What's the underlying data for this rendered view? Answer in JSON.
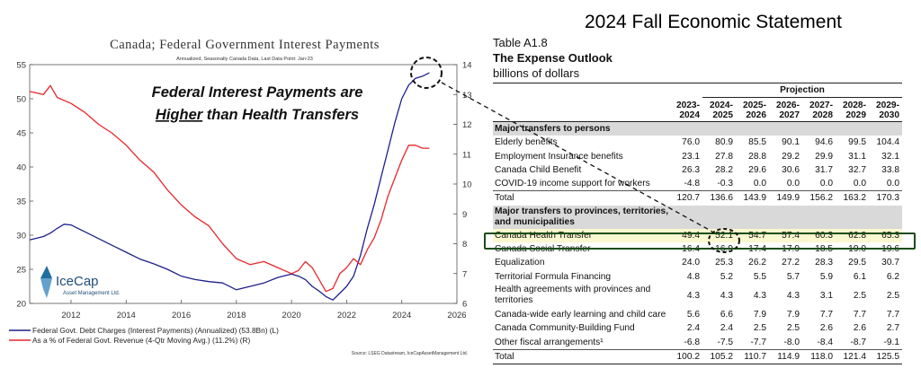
{
  "chart_data": {
    "type": "line",
    "title": "Canada; Federal Government Interest Payments",
    "subtitle": "Annualized, Seasonally Canada Data, Last Data Point: Jan-23",
    "annotation_line1": "Federal Interest Payments are",
    "annotation_higher": "Higher",
    "annotation_rest": " than Health Transfers",
    "x_ticks": [
      "2012",
      "2014",
      "2016",
      "2018",
      "2020",
      "2022",
      "2024",
      "2026"
    ],
    "xlim": [
      2010.5,
      2026
    ],
    "y_left_ticks": [
      "20",
      "25",
      "30",
      "35",
      "40",
      "45",
      "50",
      "55"
    ],
    "ylim_left": [
      20,
      55
    ],
    "y_right_ticks": [
      "6",
      "7",
      "8",
      "9",
      "10",
      "11",
      "12",
      "13",
      "14"
    ],
    "ylim_right": [
      6,
      14
    ],
    "legend_placement": "bottom-left",
    "series": [
      {
        "name": "Federal Govt. Debt Charges (Interest Payments) (Annualized) (53.8Bn) (L)",
        "axis": "left",
        "color": "#1f1f8c",
        "x": [
          2010.5,
          2011.0,
          2011.25,
          2011.5,
          2011.75,
          2012.0,
          2012.25,
          2012.5,
          2013.0,
          2013.5,
          2014.0,
          2014.5,
          2015.0,
          2015.5,
          2016.0,
          2016.5,
          2017.0,
          2017.5,
          2018.0,
          2018.5,
          2019.0,
          2019.5,
          2020.0,
          2020.25,
          2020.5,
          2020.75,
          2021.0,
          2021.25,
          2021.5,
          2021.75,
          2022.0,
          2022.25,
          2022.5,
          2022.75,
          2023.0,
          2023.25,
          2023.5,
          2023.75,
          2024.0,
          2024.25,
          2024.5,
          2024.75,
          2025.0
        ],
        "values": [
          29.3,
          29.8,
          30.3,
          31.0,
          31.6,
          31.5,
          31.0,
          30.5,
          29.5,
          28.5,
          27.5,
          26.5,
          25.8,
          25.0,
          24.0,
          23.5,
          23.2,
          23.0,
          22.0,
          22.5,
          23.0,
          23.8,
          24.3,
          24.0,
          23.5,
          22.5,
          21.8,
          21.0,
          20.5,
          21.5,
          22.5,
          24.0,
          27.0,
          31.0,
          34.5,
          38.5,
          42.5,
          46.5,
          50.0,
          52.0,
          53.0,
          53.3,
          53.8
        ]
      },
      {
        "name": "As a % of Federal Govt. Revenue (4-Qtr Moving Avg.) (11.2%) (R)",
        "axis": "right",
        "color": "#e8262b",
        "x": [
          2010.5,
          2011.0,
          2011.25,
          2011.5,
          2012.0,
          2012.5,
          2013.0,
          2013.5,
          2014.0,
          2014.5,
          2015.0,
          2015.5,
          2016.0,
          2016.5,
          2017.0,
          2017.5,
          2018.0,
          2018.5,
          2019.0,
          2019.5,
          2020.0,
          2020.25,
          2020.5,
          2020.75,
          2021.0,
          2021.25,
          2021.5,
          2021.75,
          2022.0,
          2022.25,
          2022.5,
          2022.75,
          2023.0,
          2023.25,
          2023.5,
          2023.75,
          2024.0,
          2024.25,
          2024.5,
          2024.75,
          2025.0
        ],
        "values": [
          13.1,
          13.0,
          13.3,
          12.9,
          12.7,
          12.4,
          12.0,
          11.7,
          11.3,
          10.8,
          10.4,
          9.8,
          9.3,
          8.9,
          8.6,
          8.0,
          7.5,
          7.3,
          7.4,
          7.2,
          7.0,
          7.1,
          7.4,
          7.2,
          6.8,
          6.4,
          6.5,
          7.0,
          7.2,
          7.5,
          7.3,
          7.8,
          8.2,
          8.8,
          9.6,
          10.2,
          10.8,
          11.3,
          11.3,
          11.2,
          11.2
        ]
      }
    ]
  },
  "logo": {
    "name": "IceCap",
    "tagline": "Asset Management Ltd."
  },
  "source": "Source: LSEG Datastream, IceCapAssetManagement Ltd.",
  "colors": {
    "highlight_box": "#1a4d1a",
    "highlight_fill": "#fbf7cf",
    "section_fill": "#d9d9d9"
  },
  "statement_title": "2024 Fall Economic Statement",
  "table": {
    "id": "Table A1.8",
    "title": "The Expense Outlook",
    "unit": "billions of dollars",
    "projection_label": "Projection",
    "years": [
      "2023-\n2024",
      "2024-\n2025",
      "2025-\n2026",
      "2026-\n2027",
      "2027-\n2028",
      "2028-\n2029",
      "2029-\n2030"
    ],
    "section1": "Major transfers to persons",
    "rows1": [
      {
        "label": "Elderly benefits",
        "values": [
          "76.0",
          "80.9",
          "85.5",
          "90.1",
          "94.6",
          "99.5",
          "104.4"
        ]
      },
      {
        "label": "Employment Insurance benefits",
        "values": [
          "23.1",
          "27.8",
          "28.8",
          "29.2",
          "29.9",
          "31.1",
          "32.1"
        ]
      },
      {
        "label": "Canada Child Benefit",
        "values": [
          "26.3",
          "28.2",
          "29.6",
          "30.6",
          "31.7",
          "32.7",
          "33.8"
        ]
      },
      {
        "label": "COVID-19 income support for workers",
        "values": [
          "-4.8",
          "-0.3",
          "0.0",
          "0.0",
          "0.0",
          "0.0",
          "0.0"
        ]
      }
    ],
    "total1": {
      "label": "Total",
      "values": [
        "120.7",
        "136.6",
        "143.9",
        "149.9",
        "156.2",
        "163.2",
        "170.3"
      ]
    },
    "section2": "Major transfers to provinces, territories, and municipalities",
    "rows2": [
      {
        "label": "Canada Health Transfer",
        "values": [
          "49.4",
          "52.1",
          "54.7",
          "57.4",
          "60.3",
          "62.8",
          "65.3"
        ]
      },
      {
        "label": "Canada Social Transfer",
        "values": [
          "16.4",
          "16.9",
          "17.4",
          "17.9",
          "18.5",
          "19.0",
          "19.6"
        ]
      },
      {
        "label": "Equalization",
        "values": [
          "24.0",
          "25.3",
          "26.2",
          "27.2",
          "28.3",
          "29.5",
          "30.7"
        ]
      },
      {
        "label": "Territorial Formula Financing",
        "values": [
          "4.8",
          "5.2",
          "5.5",
          "5.7",
          "5.9",
          "6.1",
          "6.2"
        ]
      },
      {
        "label": "Health agreements with provinces and territories",
        "values": [
          "4.3",
          "4.3",
          "4.3",
          "4.3",
          "3.1",
          "2.5",
          "2.5"
        ]
      },
      {
        "label": "Canada-wide early learning and child care",
        "values": [
          "5.6",
          "6.6",
          "7.9",
          "7.9",
          "7.7",
          "7.7",
          "7.7"
        ]
      },
      {
        "label": "Canada Community-Building Fund",
        "values": [
          "2.4",
          "2.4",
          "2.5",
          "2.5",
          "2.6",
          "2.6",
          "2.7"
        ]
      },
      {
        "label": "Other fiscal arrangements¹",
        "values": [
          "-6.8",
          "-7.5",
          "-7.7",
          "-8.0",
          "-8.4",
          "-8.7",
          "-9.1"
        ]
      }
    ],
    "total2": {
      "label": "Total",
      "values": [
        "100.2",
        "105.2",
        "110.7",
        "114.9",
        "118.0",
        "121.4",
        "125.5"
      ]
    }
  }
}
